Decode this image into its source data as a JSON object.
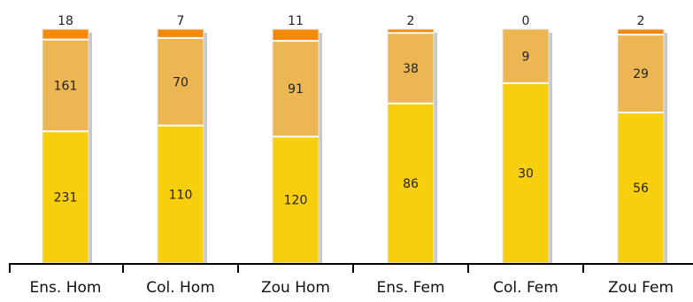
{
  "chart_data": {
    "type": "bar",
    "stacked": "percent",
    "categories": [
      "Ens. Hom",
      "Col. Hom",
      "Zou Hom",
      "Ens. Fem",
      "Col. Fem",
      "Zou Fem"
    ],
    "series": [
      {
        "values": [
          231,
          110,
          120,
          86,
          30,
          56
        ],
        "color": "#f8cf0c"
      },
      {
        "values": [
          161,
          70,
          91,
          38,
          9,
          29
        ],
        "color": "#ecb652"
      },
      {
        "values": [
          18,
          7,
          11,
          2,
          0,
          2
        ],
        "color": "#f38809"
      }
    ],
    "grid": false,
    "legend": "none"
  }
}
